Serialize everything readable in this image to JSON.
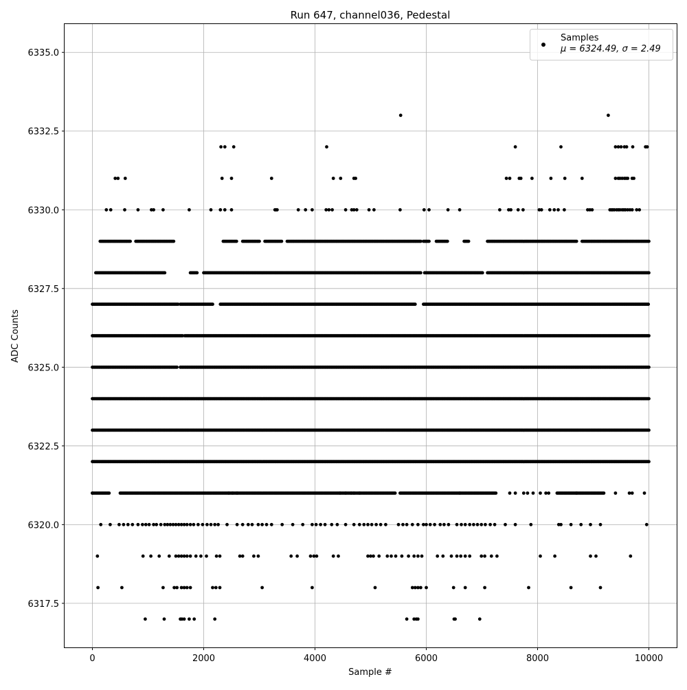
{
  "chart_data": {
    "type": "scatter",
    "title": "Run 647, channel036, Pedestal",
    "xlabel": "Sample #",
    "ylabel": "ADC Counts",
    "xlim": [
      -500,
      10500
    ],
    "ylim": [
      6316.1,
      6335.9
    ],
    "xticks": [
      0,
      2000,
      4000,
      6000,
      8000,
      10000
    ],
    "xtick_labels": [
      "0",
      "2000",
      "4000",
      "6000",
      "8000",
      "10000"
    ],
    "yticks": [
      6317.5,
      6320.0,
      6322.5,
      6325.0,
      6327.5,
      6330.0,
      6332.5,
      6335.0
    ],
    "ytick_labels": [
      "6317.5",
      "6320.0",
      "6322.5",
      "6325.0",
      "6327.5",
      "6330.0",
      "6332.5",
      "6335.0"
    ],
    "grid": true,
    "legend": {
      "placement": "top-right",
      "entries": [
        {
          "label": "Samples",
          "sublabel": "μ = 6324.49, σ = 2.49",
          "color": "#000000",
          "marker": "circle"
        }
      ]
    },
    "series": [
      {
        "name": "Samples",
        "color": "#000000",
        "sample_range": [
          0,
          10000
        ],
        "level_presence": [
          {
            "y": 6317,
            "x": [
              950,
              1290,
              1580,
              1610,
              1650,
              1740,
              1830,
              2200,
              5650,
              5780,
              5820,
              5850,
              6500,
              6520,
              6960
            ]
          },
          {
            "y": 6318,
            "x": [
              100,
              530,
              1270,
              1470,
              1520,
              1600,
              1650,
              1700,
              1760,
              2160,
              2220,
              2290,
              3050,
              3950,
              5080,
              5750,
              5800,
              5850,
              5900,
              6000,
              6490,
              6700,
              7050,
              7840,
              8600,
              9130
            ]
          },
          {
            "y": 6319,
            "x": [
              90,
              910,
              1050,
              1200,
              1380,
              1500,
              1550,
              1600,
              1650,
              1700,
              1760,
              1860,
              1950,
              2050,
              2230,
              2290,
              2650,
              2700,
              2900,
              2980,
              3570,
              3680,
              3920,
              3980,
              4030,
              4330,
              4420,
              4950,
              5000,
              5050,
              5150,
              5300,
              5370,
              5450,
              5560,
              5680,
              5780,
              5850,
              5920,
              6200,
              6300,
              6450,
              6550,
              6620,
              6700,
              6780,
              6990,
              7050,
              7170,
              7270,
              8050,
              8310,
              8950,
              9050,
              9670
            ]
          },
          {
            "y": 6320,
            "x": [
              150,
              320,
              480,
              560,
              640,
              720,
              820,
              900,
              960,
              1020,
              1100,
              1150,
              1230,
              1300,
              1350,
              1400,
              1450,
              1500,
              1550,
              1600,
              1650,
              1700,
              1760,
              1820,
              1900,
              1980,
              2060,
              2130,
              2200,
              2260,
              2420,
              2600,
              2700,
              2800,
              2870,
              2980,
              3050,
              3130,
              3220,
              3410,
              3600,
              3780,
              3950,
              4020,
              4100,
              4180,
              4300,
              4400,
              4550,
              4700,
              4800,
              4880,
              4950,
              5020,
              5100,
              5180,
              5270,
              5500,
              5580,
              5650,
              5750,
              5850,
              5950,
              6000,
              6070,
              6150,
              6250,
              6320,
              6400,
              6550,
              6630,
              6700,
              6780,
              6850,
              6920,
              6990,
              7060,
              7150,
              7230,
              7420,
              7600,
              7880,
              8380,
              8420,
              8600,
              8780,
              8950,
              9130,
              9960
            ]
          },
          {
            "y": 6321,
            "x": [
              0,
              2450,
              2520,
              2600,
              4450,
              4550,
              4650,
              4700,
              4800,
              6600,
              7500,
              7600,
              7750,
              7820,
              7920,
              8050,
              8150,
              8200,
              8700,
              9400,
              9650,
              9700,
              9920
            ],
            "contiguous": [
              [
                0,
                300
              ],
              [
                500,
                5450
              ],
              [
                5530,
                7250
              ],
              [
                8350,
                9200
              ]
            ]
          },
          {
            "y": 6322,
            "x": [],
            "contiguous": [
              [
                0,
                10000
              ]
            ]
          },
          {
            "y": 6323,
            "x": [],
            "contiguous": [
              [
                0,
                10000
              ]
            ]
          },
          {
            "y": 6324,
            "x": [],
            "contiguous": [
              [
                0,
                10000
              ]
            ]
          },
          {
            "y": 6325,
            "x": [],
            "contiguous": [
              [
                0,
                1530
              ],
              [
                1580,
                10000
              ]
            ]
          },
          {
            "y": 6326,
            "x": [],
            "contiguous": [
              [
                0,
                1620
              ],
              [
                1660,
                10000
              ]
            ]
          },
          {
            "y": 6327,
            "x": [],
            "contiguous": [
              [
                0,
                1540
              ],
              [
                1580,
                2160
              ],
              [
                2300,
                5810
              ],
              [
                5950,
                10000
              ]
            ]
          },
          {
            "y": 6328,
            "x": [],
            "contiguous": [
              [
                60,
                1300
              ],
              [
                1760,
                1880
              ],
              [
                2000,
                5900
              ],
              [
                5970,
                7020
              ],
              [
                7100,
                10000
              ]
            ]
          },
          {
            "y": 6329,
            "x": [],
            "contiguous": [
              [
                140,
                680
              ],
              [
                780,
                1460
              ],
              [
                2350,
                2600
              ],
              [
                2700,
                3000
              ],
              [
                3100,
                3400
              ],
              [
                3500,
                5900
              ],
              [
                5950,
                6050
              ],
              [
                6180,
                6380
              ],
              [
                6680,
                6760
              ],
              [
                7100,
                8700
              ],
              [
                8800,
                10000
              ]
            ]
          },
          {
            "y": 6330,
            "x": [
              250,
              330,
              580,
              820,
              1060,
              1100,
              1270,
              1740,
              2130,
              2300,
              2380,
              2500,
              3280,
              3300,
              3320,
              3700,
              3830,
              3950,
              4200,
              4250,
              4310,
              4550,
              4660,
              4700,
              4750,
              4970,
              5060,
              5530,
              5960,
              6050,
              6390,
              6600,
              7320,
              7480,
              7520,
              7650,
              7740,
              8030,
              8070,
              8220,
              8300,
              8370,
              8480,
              8900,
              8940,
              8980,
              9300,
              9330,
              9350,
              9380,
              9420,
              9450,
              9480,
              9520,
              9550,
              9580,
              9620,
              9660,
              9700,
              9780,
              9830
            ]
          },
          {
            "y": 6331,
            "x": [
              410,
              460,
              590,
              2330,
              2500,
              3220,
              4330,
              4460,
              4700,
              4730,
              7440,
              7500,
              7670,
              7700,
              7900,
              8240,
              8490,
              8800,
              9400,
              9450,
              9480,
              9520,
              9560,
              9590,
              9620,
              9700,
              9730
            ]
          },
          {
            "y": 6332,
            "x": [
              2310,
              2380,
              2540,
              4210,
              7600,
              8420,
              9400,
              9450,
              9500,
              9560,
              9600,
              9710,
              9940,
              9970
            ]
          },
          {
            "y": 6333,
            "x": [
              5540,
              9270
            ]
          }
        ]
      }
    ]
  }
}
